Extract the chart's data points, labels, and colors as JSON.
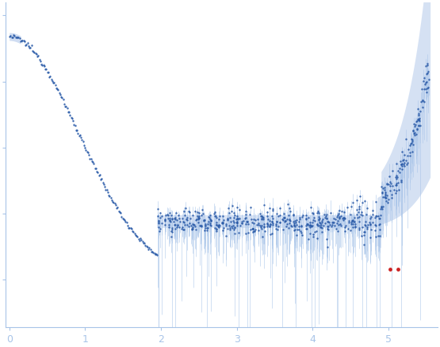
{
  "dot_color": "#2b5ba8",
  "error_color": "#a8c4e8",
  "fit_color": "#c8d8f0",
  "outlier_color": "#cc2222",
  "background_color": "#ffffff",
  "axis_color": "#a8c4e8",
  "tick_color": "#a8c4e8",
  "label_color": "#a8c4e8",
  "xmin": -0.05,
  "xmax": 5.65,
  "ymin": -0.18,
  "ymax": 1.05,
  "figsize": [
    5.55,
    4.37
  ],
  "dpi": 100
}
